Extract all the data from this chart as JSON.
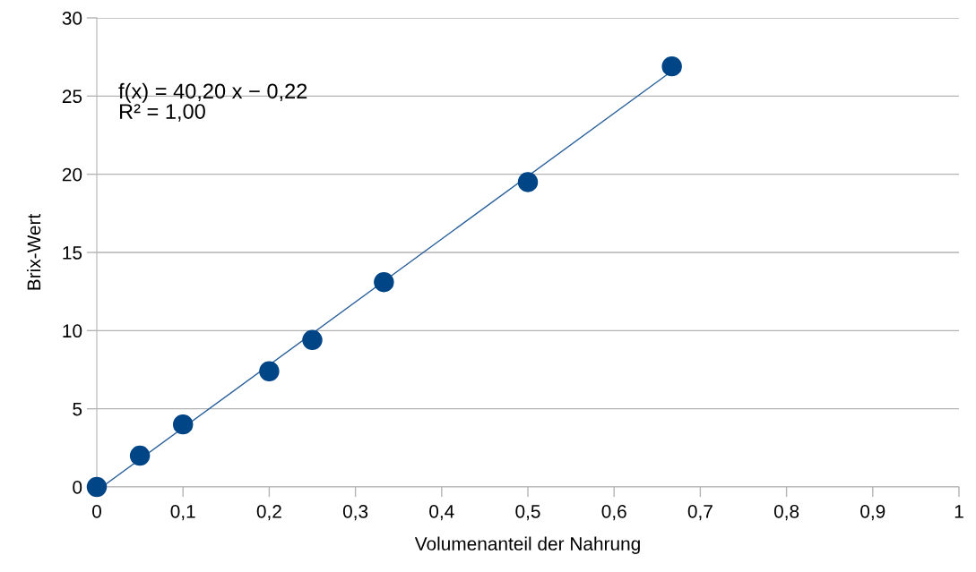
{
  "chart_data": {
    "type": "scatter",
    "xlabel": "Volumenanteil der Nahrung",
    "ylabel": "Brix-Wert",
    "xlim": [
      0,
      1
    ],
    "xticks": [
      {
        "value": 0,
        "label": "0"
      },
      {
        "value": 0.1,
        "label": "0,1"
      },
      {
        "value": 0.2,
        "label": "0,2"
      },
      {
        "value": 0.3,
        "label": "0,3"
      },
      {
        "value": 0.4,
        "label": "0,4"
      },
      {
        "value": 0.5,
        "label": "0,5"
      },
      {
        "value": 0.6,
        "label": "0,6"
      },
      {
        "value": 0.7,
        "label": "0,7"
      },
      {
        "value": 0.8,
        "label": "0,8"
      },
      {
        "value": 0.9,
        "label": "0,9"
      },
      {
        "value": 1,
        "label": "1"
      }
    ],
    "ylim": [
      0,
      30
    ],
    "yticks": [
      0,
      5,
      10,
      15,
      20,
      25,
      30
    ],
    "grid": "y",
    "annotations": [
      "f(x) = 40,20 x − 0,22",
      "R² = 1,00"
    ],
    "series": [
      {
        "marker": "circle",
        "color": "#004586",
        "x": [
          0,
          0.05,
          0.1,
          0.2,
          0.25,
          0.333,
          0.5,
          0.667
        ],
        "values": [
          0,
          2.0,
          4.0,
          7.4,
          9.4,
          13.1,
          19.5,
          26.9
        ]
      },
      {
        "type": "line",
        "color": "#2a6099",
        "x": [
          0.006,
          0.667
        ],
        "values": [
          0,
          26.6
        ]
      }
    ]
  }
}
